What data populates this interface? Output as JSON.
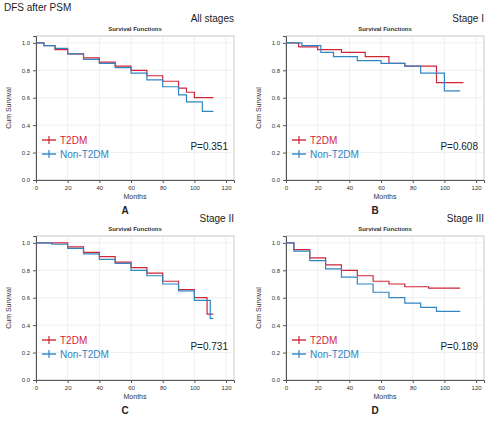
{
  "title": "DFS after PSM",
  "chart_data": [
    {
      "type": "line",
      "title": "Survival Functions",
      "subtitle": "All stages",
      "x_label": "Months",
      "y_label": "Cum Survival",
      "annotations": [
        "P=0.351",
        "A"
      ],
      "xlim": [
        0,
        125
      ],
      "ylim": [
        0,
        1.05
      ],
      "xticks": [
        0,
        20,
        40,
        60,
        80,
        100,
        120
      ],
      "yticks": [
        {
          "value": 0,
          "label": "0.0"
        },
        {
          "value": 0.2,
          "label": "0.2"
        },
        {
          "value": 0.4,
          "label": "0.4"
        },
        {
          "value": 0.6,
          "label": "0.6"
        },
        {
          "value": 0.8,
          "label": "0.8"
        },
        {
          "value": 1,
          "label": "1.0"
        }
      ],
      "grid": true,
      "legend": "lower left",
      "line_style": "step",
      "series": [
        {
          "name": "T2DM",
          "color": "#d0253a",
          "x": [
            0,
            5,
            12,
            20,
            30,
            40,
            50,
            60,
            70,
            80,
            90,
            95,
            100,
            112
          ],
          "values": [
            1.0,
            0.98,
            0.95,
            0.92,
            0.89,
            0.86,
            0.83,
            0.8,
            0.76,
            0.72,
            0.67,
            0.64,
            0.6,
            0.6
          ]
        },
        {
          "name": "Non-T2DM",
          "color": "#2f86c4",
          "x": [
            0,
            5,
            12,
            20,
            30,
            40,
            50,
            60,
            70,
            80,
            90,
            95,
            105,
            112
          ],
          "values": [
            1.0,
            0.98,
            0.96,
            0.92,
            0.88,
            0.85,
            0.82,
            0.78,
            0.73,
            0.68,
            0.62,
            0.57,
            0.5,
            0.5
          ]
        }
      ]
    },
    {
      "type": "line",
      "title": "Survival Functions",
      "subtitle": "Stage I",
      "x_label": "Months",
      "y_label": "Cum Survival",
      "annotations": [
        "P=0.608",
        "B"
      ],
      "xlim": [
        0,
        125
      ],
      "ylim": [
        0,
        1.05
      ],
      "xticks": [
        0,
        20,
        40,
        60,
        80,
        100,
        120
      ],
      "yticks": [
        {
          "value": 0,
          "label": "0.0"
        },
        {
          "value": 0.2,
          "label": "0.2"
        },
        {
          "value": 0.4,
          "label": "0.4"
        },
        {
          "value": 0.6,
          "label": "0.6"
        },
        {
          "value": 0.8,
          "label": "0.8"
        },
        {
          "value": 1,
          "label": "1.0"
        }
      ],
      "grid": true,
      "legend": "lower left",
      "line_style": "step",
      "series": [
        {
          "name": "T2DM",
          "color": "#d0253a",
          "x": [
            0,
            8,
            20,
            35,
            50,
            65,
            75,
            95,
            112
          ],
          "values": [
            1.0,
            0.97,
            0.95,
            0.93,
            0.9,
            0.85,
            0.83,
            0.71,
            0.71
          ]
        },
        {
          "name": "Non-T2DM",
          "color": "#2f86c4",
          "x": [
            0,
            10,
            22,
            30,
            45,
            60,
            75,
            85,
            100,
            110
          ],
          "values": [
            1.0,
            0.98,
            0.93,
            0.9,
            0.87,
            0.85,
            0.83,
            0.78,
            0.65,
            0.65
          ]
        }
      ]
    },
    {
      "type": "line",
      "title": "Survival Functions",
      "subtitle": "Stage II",
      "x_label": "Months",
      "y_label": "Cum Survival",
      "annotations": [
        "P=0.731",
        "C"
      ],
      "xlim": [
        0,
        125
      ],
      "ylim": [
        0,
        1.05
      ],
      "xticks": [
        0,
        20,
        40,
        60,
        80,
        100,
        120
      ],
      "yticks": [
        {
          "value": 0,
          "label": "0.0"
        },
        {
          "value": 0.2,
          "label": "0.2"
        },
        {
          "value": 0.4,
          "label": "0.4"
        },
        {
          "value": 0.6,
          "label": "0.6"
        },
        {
          "value": 0.8,
          "label": "0.8"
        },
        {
          "value": 1,
          "label": "1.0"
        }
      ],
      "grid": true,
      "legend": "lower left",
      "line_style": "step",
      "series": [
        {
          "name": "T2DM",
          "color": "#d0253a",
          "x": [
            0,
            10,
            20,
            30,
            40,
            50,
            60,
            70,
            80,
            90,
            100,
            108,
            112
          ],
          "values": [
            1.0,
            1.0,
            0.97,
            0.93,
            0.9,
            0.86,
            0.82,
            0.78,
            0.72,
            0.66,
            0.6,
            0.48,
            0.48
          ]
        },
        {
          "name": "Non-T2DM",
          "color": "#2f86c4",
          "x": [
            0,
            10,
            20,
            30,
            40,
            50,
            60,
            70,
            80,
            90,
            100,
            110,
            112
          ],
          "values": [
            1.0,
            0.99,
            0.96,
            0.92,
            0.88,
            0.85,
            0.8,
            0.76,
            0.7,
            0.65,
            0.58,
            0.45,
            0.45
          ]
        }
      ]
    },
    {
      "type": "line",
      "title": "Survival Functions",
      "subtitle": "Stage III",
      "x_label": "Months",
      "y_label": "Cum Survival",
      "annotations": [
        "P=0.189",
        "D"
      ],
      "xlim": [
        0,
        125
      ],
      "ylim": [
        0,
        1.05
      ],
      "xticks": [
        0,
        20,
        40,
        60,
        80,
        100,
        120
      ],
      "yticks": [
        {
          "value": 0,
          "label": "0.0"
        },
        {
          "value": 0.2,
          "label": "0.2"
        },
        {
          "value": 0.4,
          "label": "0.4"
        },
        {
          "value": 0.6,
          "label": "0.6"
        },
        {
          "value": 0.8,
          "label": "0.8"
        },
        {
          "value": 1,
          "label": "1.0"
        }
      ],
      "grid": true,
      "legend": "lower left",
      "line_style": "step",
      "series": [
        {
          "name": "T2DM",
          "color": "#d0253a",
          "x": [
            0,
            5,
            15,
            25,
            35,
            45,
            55,
            65,
            75,
            90,
            110
          ],
          "values": [
            1.0,
            0.95,
            0.89,
            0.84,
            0.8,
            0.76,
            0.72,
            0.7,
            0.68,
            0.67,
            0.67
          ]
        },
        {
          "name": "Non-T2DM",
          "color": "#2f86c4",
          "x": [
            0,
            5,
            15,
            25,
            35,
            45,
            55,
            65,
            75,
            85,
            95,
            110
          ],
          "values": [
            1.0,
            0.94,
            0.87,
            0.81,
            0.75,
            0.7,
            0.64,
            0.6,
            0.56,
            0.53,
            0.5,
            0.5
          ]
        }
      ]
    }
  ]
}
